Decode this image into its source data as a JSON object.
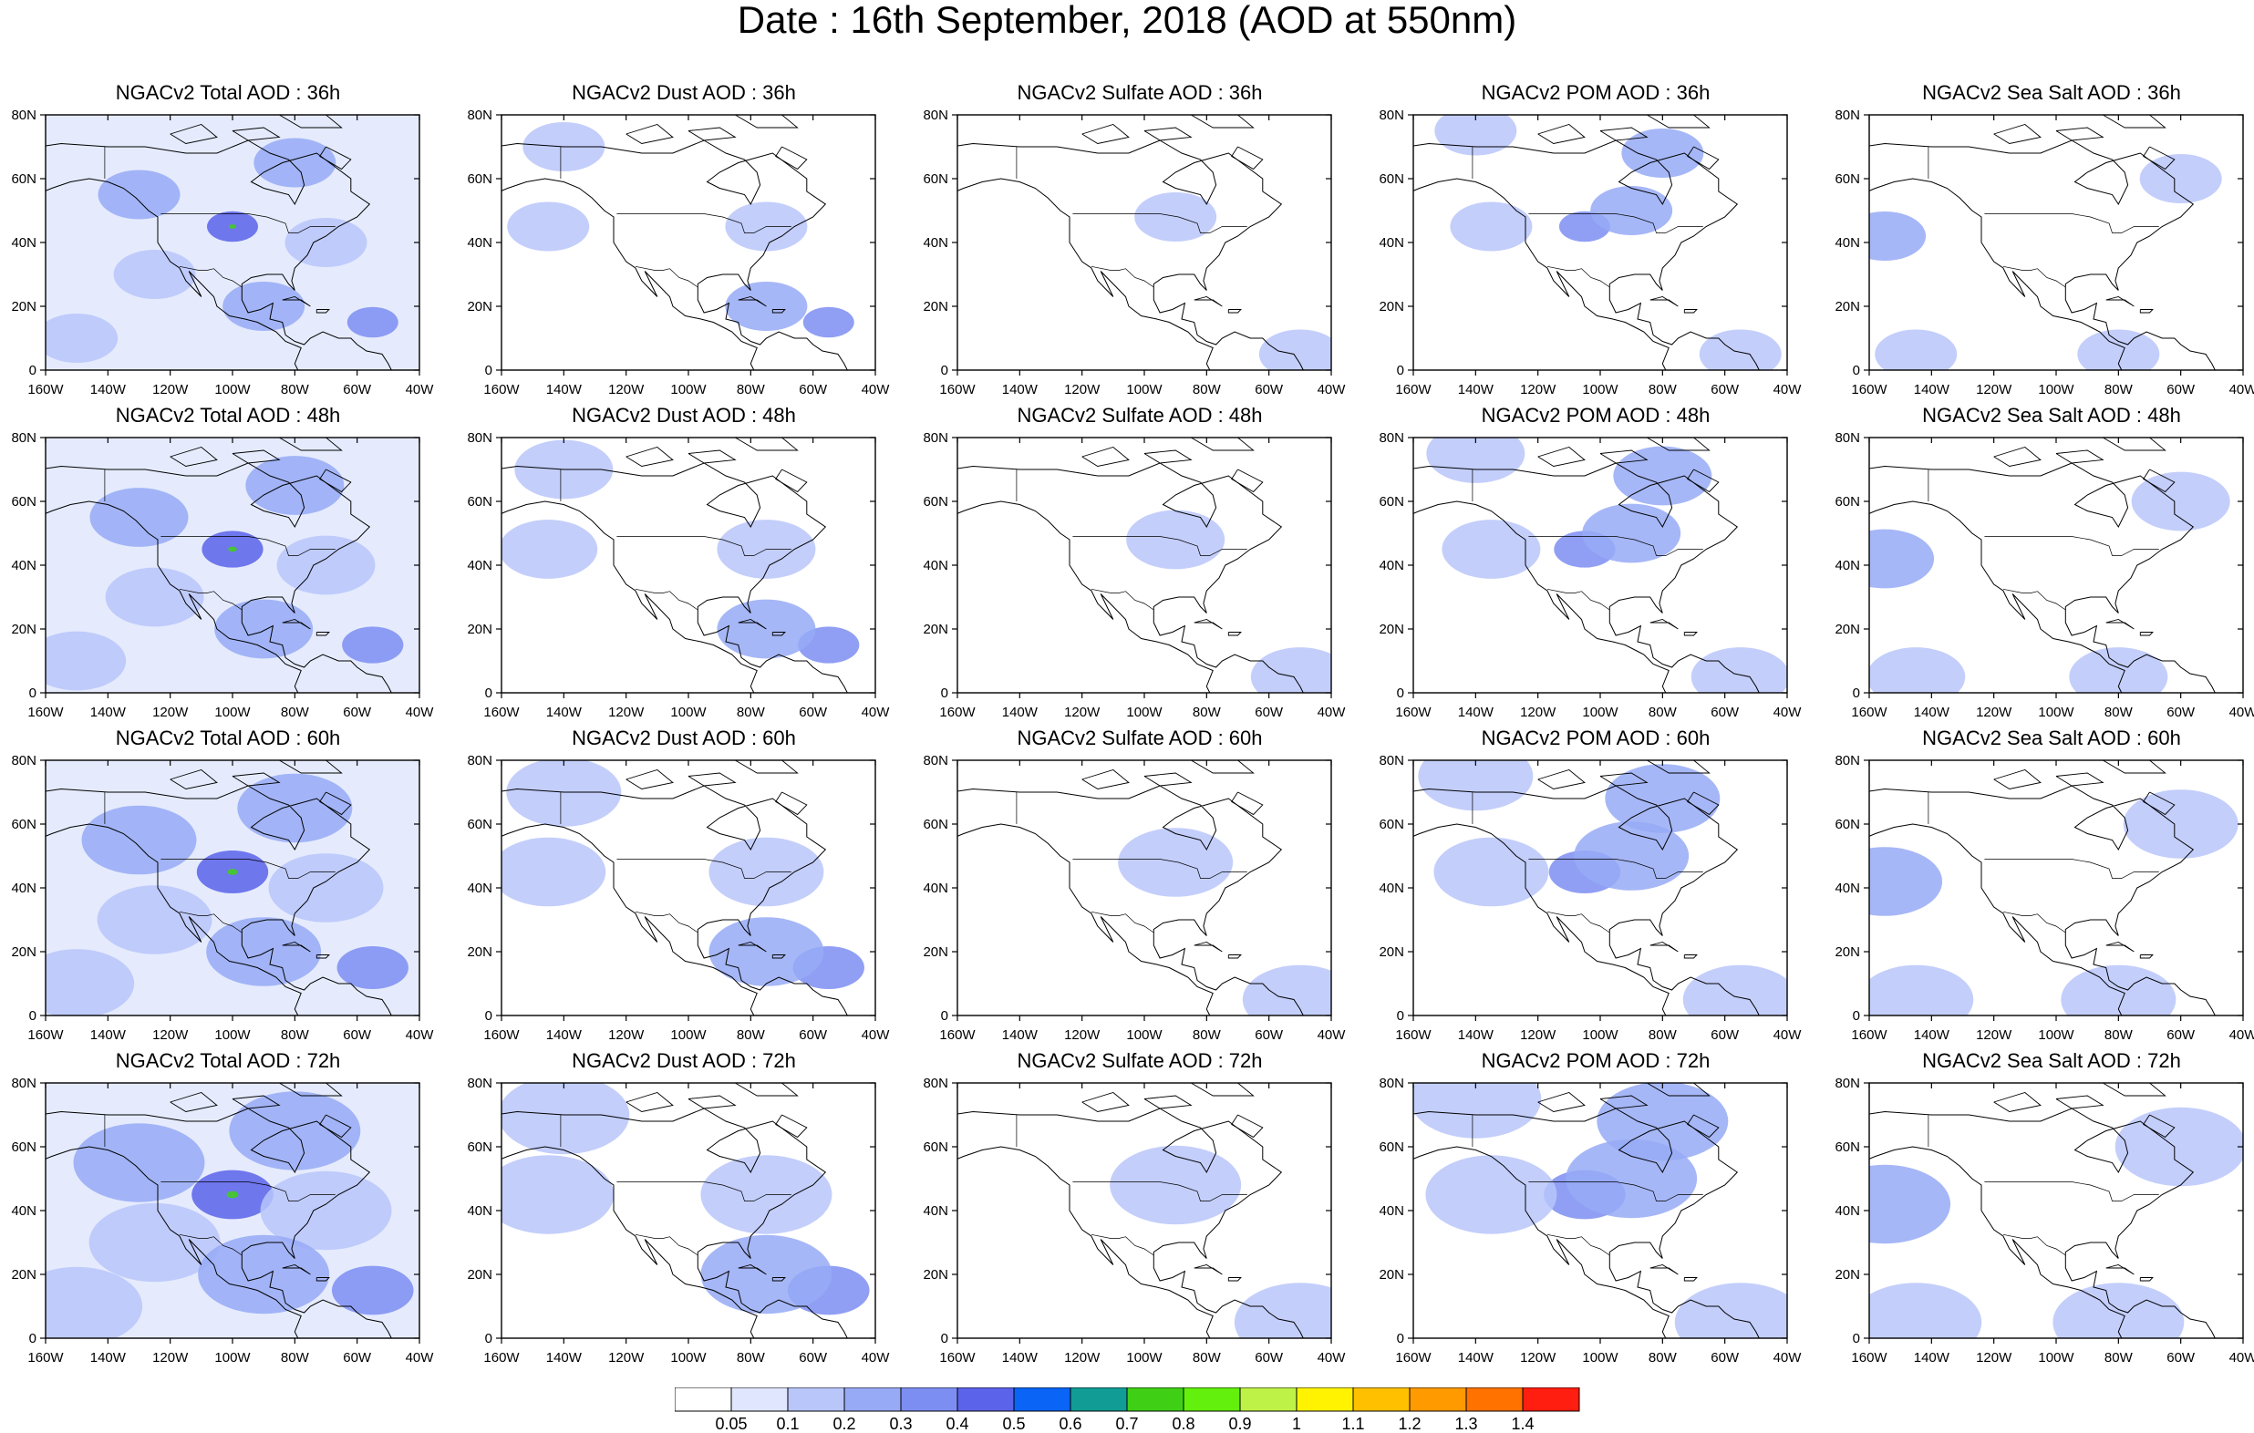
{
  "title": "Date : 16th September, 2018 (AOD at 550nm)",
  "map": {
    "lon_ticks": [
      "160W",
      "140W",
      "120W",
      "100W",
      "80W",
      "60W",
      "40W"
    ],
    "lat_ticks": [
      "80N",
      "60N",
      "40N",
      "20N",
      "0"
    ],
    "lon_range": [
      -160,
      -40
    ],
    "lat_range": [
      0,
      80
    ]
  },
  "panels": [
    {
      "title": "NGACv2 Total AOD : 36h",
      "species": "total",
      "forecast_hour": 36
    },
    {
      "title": "NGACv2 Dust AOD : 36h",
      "species": "dust",
      "forecast_hour": 36
    },
    {
      "title": "NGACv2 Sulfate AOD : 36h",
      "species": "sulfate",
      "forecast_hour": 36
    },
    {
      "title": "NGACv2 POM AOD : 36h",
      "species": "pom",
      "forecast_hour": 36
    },
    {
      "title": "NGACv2 Sea Salt AOD : 36h",
      "species": "seasalt",
      "forecast_hour": 36
    },
    {
      "title": "NGACv2 Total AOD : 48h",
      "species": "total",
      "forecast_hour": 48
    },
    {
      "title": "NGACv2 Dust AOD : 48h",
      "species": "dust",
      "forecast_hour": 48
    },
    {
      "title": "NGACv2 Sulfate AOD : 48h",
      "species": "sulfate",
      "forecast_hour": 48
    },
    {
      "title": "NGACv2 POM AOD : 48h",
      "species": "pom",
      "forecast_hour": 48
    },
    {
      "title": "NGACv2 Sea Salt AOD : 48h",
      "species": "seasalt",
      "forecast_hour": 48
    },
    {
      "title": "NGACv2 Total AOD : 60h",
      "species": "total",
      "forecast_hour": 60
    },
    {
      "title": "NGACv2 Dust AOD : 60h",
      "species": "dust",
      "forecast_hour": 60
    },
    {
      "title": "NGACv2 Sulfate AOD : 60h",
      "species": "sulfate",
      "forecast_hour": 60
    },
    {
      "title": "NGACv2 POM AOD : 60h",
      "species": "pom",
      "forecast_hour": 60
    },
    {
      "title": "NGACv2 Sea Salt AOD : 60h",
      "species": "seasalt",
      "forecast_hour": 60
    },
    {
      "title": "NGACv2 Total AOD : 72h",
      "species": "total",
      "forecast_hour": 72
    },
    {
      "title": "NGACv2 Dust AOD : 72h",
      "species": "dust",
      "forecast_hour": 72
    },
    {
      "title": "NGACv2 Sulfate AOD : 72h",
      "species": "sulfate",
      "forecast_hour": 72
    },
    {
      "title": "NGACv2 POM AOD : 72h",
      "species": "pom",
      "forecast_hour": 72
    },
    {
      "title": "NGACv2 Sea Salt  AOD : 72h",
      "species": "seasalt",
      "forecast_hour": 72
    }
  ],
  "colorbar": {
    "labels": [
      "0.05",
      "0.1",
      "0.2",
      "0.3",
      "0.4",
      "0.5",
      "0.6",
      "0.7",
      "0.8",
      "0.9",
      "1",
      "1.1",
      "1.2",
      "1.3",
      "1.4"
    ],
    "colors": [
      "#ffffff",
      "#dfe6fd",
      "#b8c6fa",
      "#97aaf6",
      "#7d8ef2",
      "#5b63ea",
      "#0a64f5",
      "#119d96",
      "#3fd016",
      "#63f00c",
      "#bff246",
      "#fff302",
      "#ffc000",
      "#ff9a00",
      "#ff7200",
      "#ff1e10"
    ]
  },
  "plumes": {
    "total": [
      {
        "lon": -55,
        "lat": 15,
        "v": 0.3
      },
      {
        "lon": -130,
        "lat": 55,
        "v": 0.2
      },
      {
        "lon": -100,
        "lat": 45,
        "v": 0.4
      },
      {
        "lon": -100,
        "lat": 45,
        "v": 0.7
      },
      {
        "lon": -80,
        "lat": 65,
        "v": 0.2
      },
      {
        "lon": -125,
        "lat": 30,
        "v": 0.1
      },
      {
        "lon": -70,
        "lat": 40,
        "v": 0.1
      },
      {
        "lon": -150,
        "lat": 10,
        "v": 0.1
      },
      {
        "lon": -90,
        "lat": 20,
        "v": 0.2
      }
    ],
    "dust": [
      {
        "lon": -55,
        "lat": 15,
        "v": 0.3
      },
      {
        "lon": -75,
        "lat": 20,
        "v": 0.2
      },
      {
        "lon": -145,
        "lat": 45,
        "v": 0.1
      },
      {
        "lon": -140,
        "lat": 70,
        "v": 0.1
      },
      {
        "lon": -75,
        "lat": 45,
        "v": 0.1
      }
    ],
    "sulfate": [
      {
        "lon": -90,
        "lat": 48,
        "v": 0.1
      },
      {
        "lon": -50,
        "lat": 5,
        "v": 0.1
      }
    ],
    "pom": [
      {
        "lon": -105,
        "lat": 45,
        "v": 0.3
      },
      {
        "lon": -90,
        "lat": 50,
        "v": 0.2
      },
      {
        "lon": -80,
        "lat": 68,
        "v": 0.2
      },
      {
        "lon": -140,
        "lat": 75,
        "v": 0.1
      },
      {
        "lon": -55,
        "lat": 5,
        "v": 0.1
      },
      {
        "lon": -135,
        "lat": 45,
        "v": 0.1
      }
    ],
    "seasalt": [
      {
        "lon": -155,
        "lat": 42,
        "v": 0.2
      },
      {
        "lon": -60,
        "lat": 60,
        "v": 0.1
      },
      {
        "lon": -80,
        "lat": 5,
        "v": 0.1
      },
      {
        "lon": -145,
        "lat": 5,
        "v": 0.1
      }
    ]
  }
}
